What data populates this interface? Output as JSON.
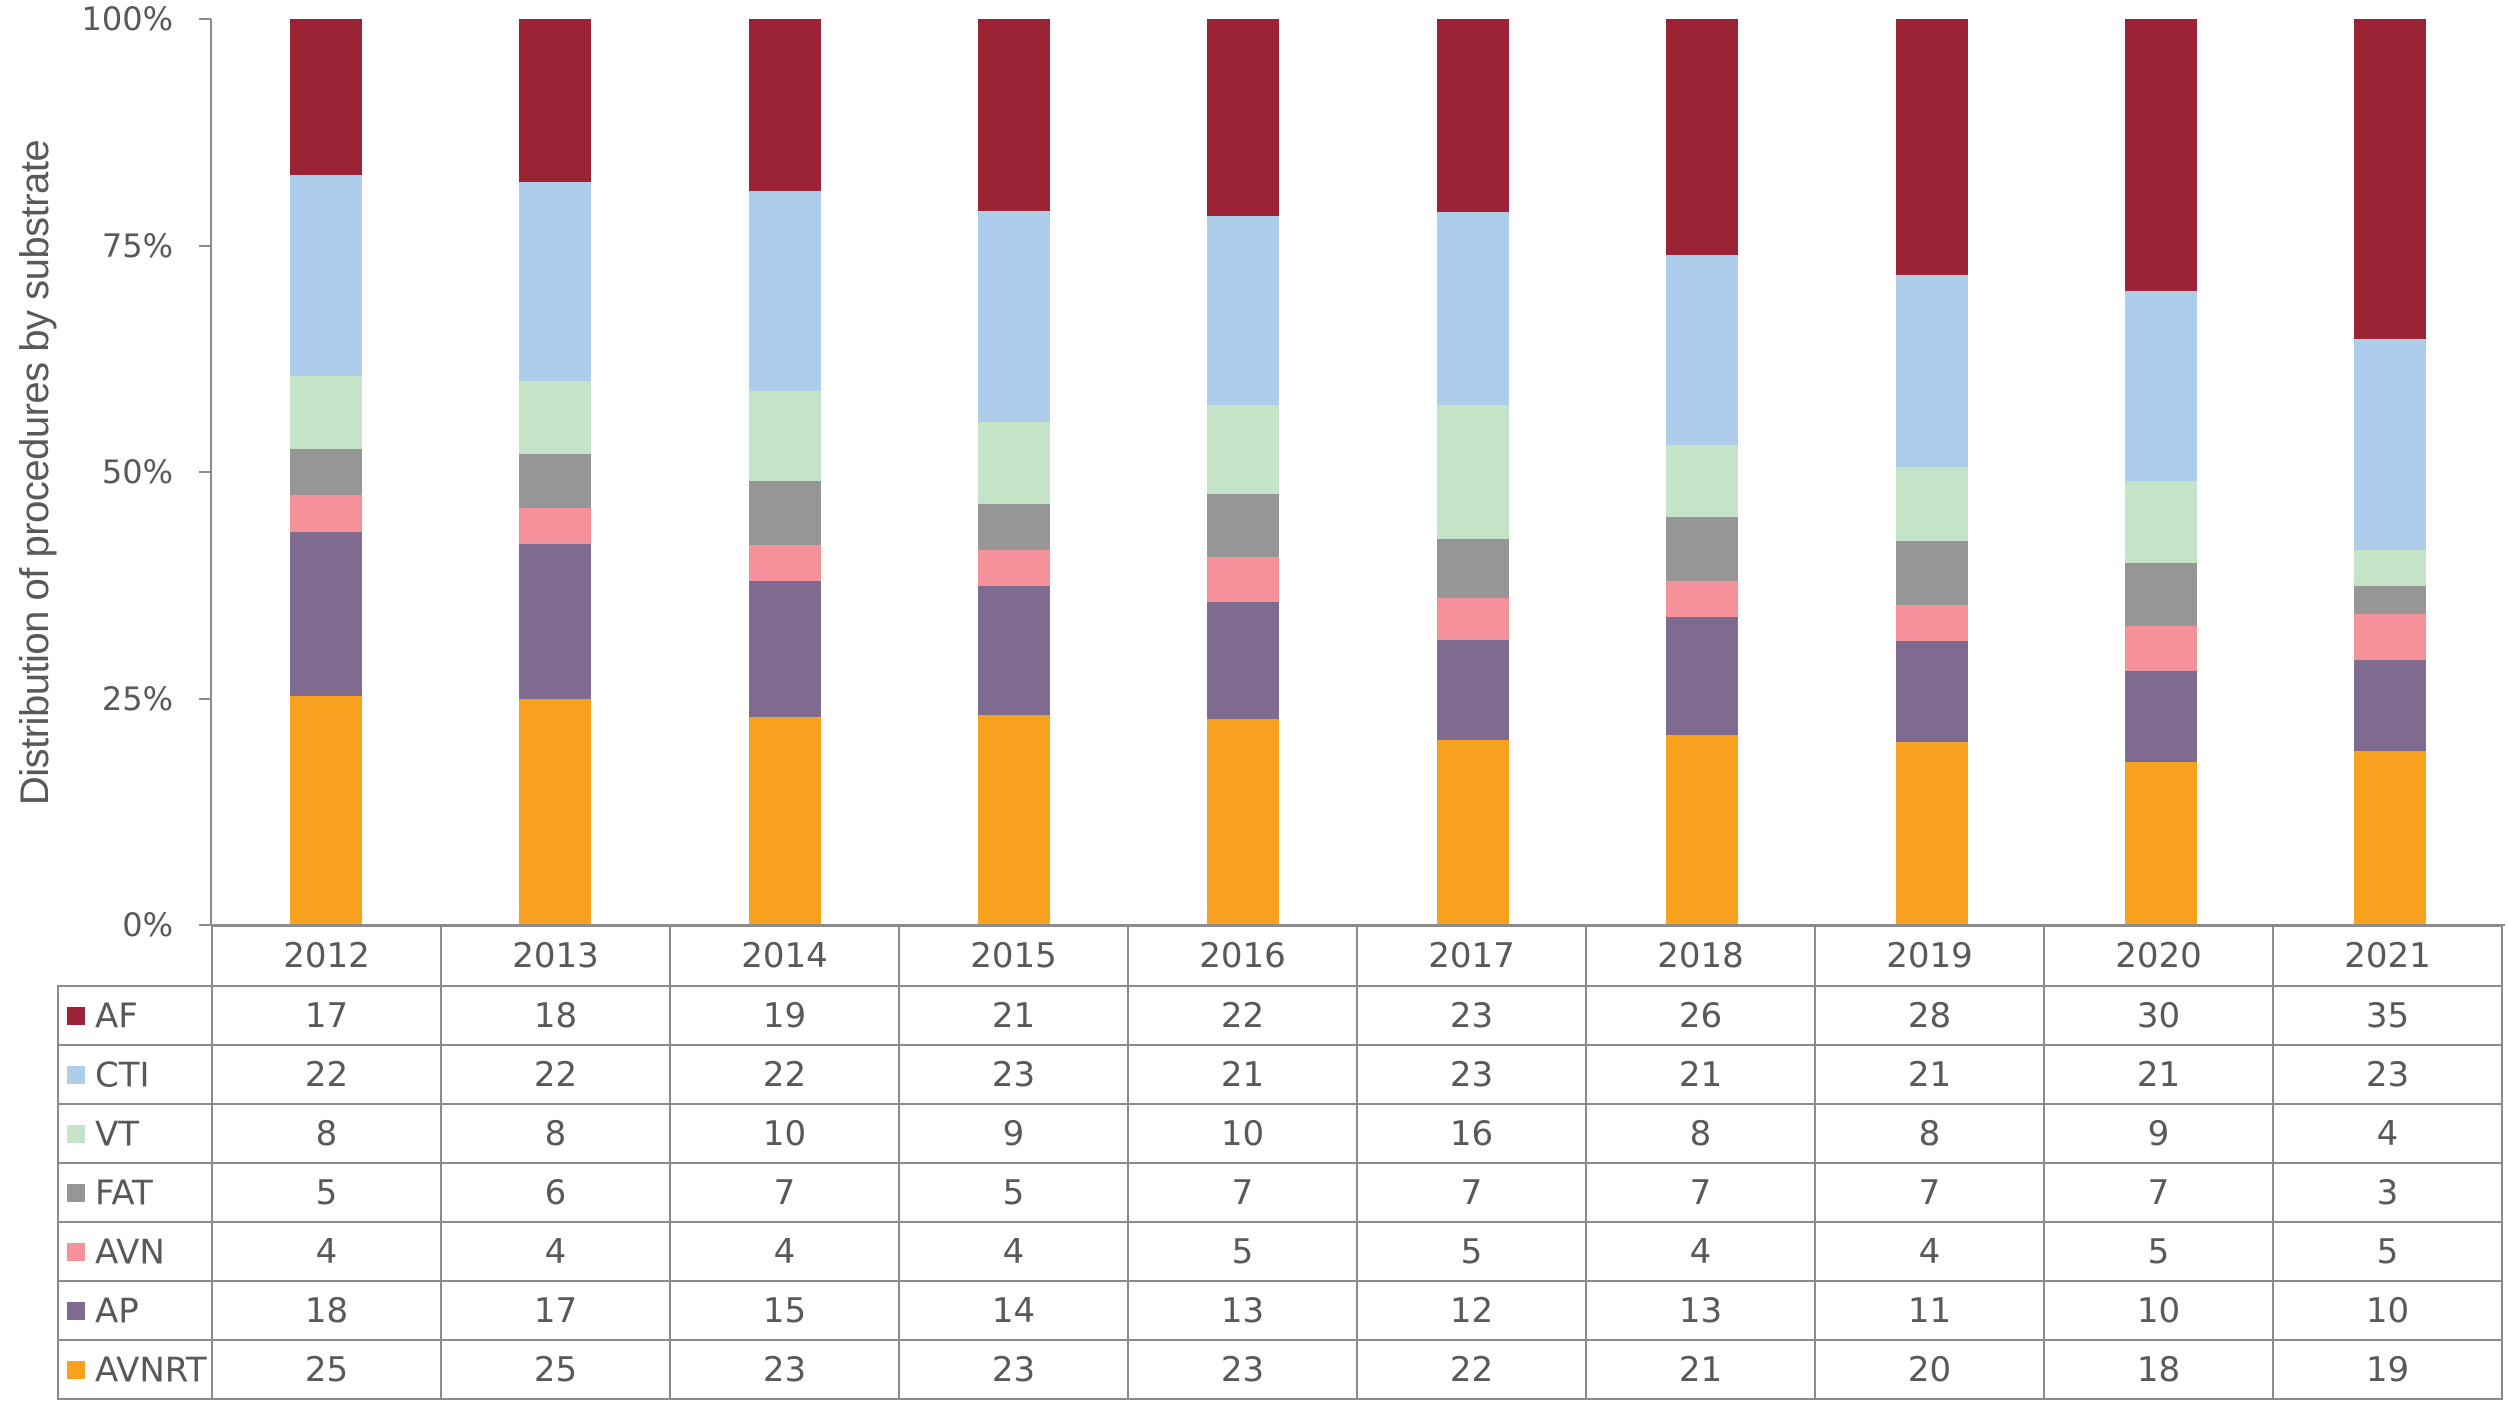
{
  "chart_data": {
    "type": "bar",
    "stacked": true,
    "normalized_percent": true,
    "title": "",
    "xlabel": "",
    "ylabel": "Distribution of procedures by substrate",
    "ylim": [
      0,
      100
    ],
    "yticks": [
      "0%",
      "25%",
      "50%",
      "75%",
      "100%"
    ],
    "grid": false,
    "legend_position": "data-table-left",
    "categories": [
      "2012",
      "2013",
      "2014",
      "2015",
      "2016",
      "2017",
      "2018",
      "2019",
      "2020",
      "2021"
    ],
    "series": [
      {
        "name": "AF",
        "color": "#9B2335",
        "values": [
          17,
          18,
          19,
          21,
          22,
          23,
          26,
          28,
          30,
          35
        ]
      },
      {
        "name": "CTI",
        "color": "#AECDEB",
        "values": [
          22,
          22,
          22,
          23,
          21,
          23,
          21,
          21,
          21,
          23
        ]
      },
      {
        "name": "VT",
        "color": "#C5E3C6",
        "values": [
          8,
          8,
          10,
          9,
          10,
          16,
          8,
          8,
          9,
          4
        ]
      },
      {
        "name": "FAT",
        "color": "#969696",
        "values": [
          5,
          6,
          7,
          5,
          7,
          7,
          7,
          7,
          7,
          3
        ]
      },
      {
        "name": "AVN",
        "color": "#F4919A",
        "values": [
          4,
          4,
          4,
          4,
          5,
          5,
          4,
          4,
          5,
          5
        ]
      },
      {
        "name": "AP",
        "color": "#7F6A90",
        "values": [
          18,
          17,
          15,
          14,
          13,
          12,
          13,
          11,
          10,
          10
        ]
      },
      {
        "name": "AVNRT",
        "color": "#F7A11E",
        "values": [
          25,
          25,
          23,
          23,
          23,
          22,
          21,
          20,
          18,
          19
        ]
      }
    ],
    "stack_order_bottom_to_top": [
      "AVNRT",
      "AP",
      "AVN",
      "FAT",
      "VT",
      "CTI",
      "AF"
    ],
    "data_table": true
  }
}
